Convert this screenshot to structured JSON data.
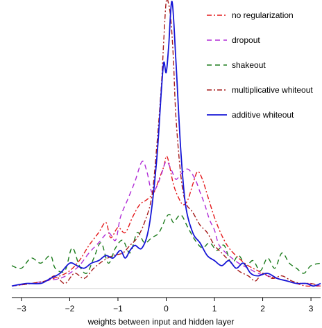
{
  "chart_data": {
    "type": "line",
    "title": "",
    "xlabel": "weights between input and hidden layer",
    "ylabel": "",
    "xlim": [
      -3.2,
      3.2
    ],
    "ylim": [
      0,
      1.13
    ],
    "xticks": [
      -3,
      -2,
      -1,
      0,
      1,
      2,
      3
    ],
    "xtick_labels": [
      "−3",
      "−2",
      "−1",
      "0",
      "1",
      "2",
      "3"
    ],
    "grid": false,
    "legend_position": "top-right",
    "series": [
      {
        "name": "no regularization",
        "color": "#e41a1c",
        "dash": "dashdot",
        "x": [
          -3.2,
          -2.8,
          -2.5,
          -2.2,
          -2.0,
          -1.8,
          -1.6,
          -1.4,
          -1.25,
          -1.15,
          -1.0,
          -0.85,
          -0.7,
          -0.55,
          -0.4,
          -0.25,
          -0.15,
          -0.05,
          0.0,
          0.05,
          0.15,
          0.25,
          0.35,
          0.45,
          0.55,
          0.65,
          0.75,
          0.85,
          1.0,
          1.15,
          1.3,
          1.5,
          1.7,
          1.9,
          2.1,
          2.3,
          2.5,
          2.7,
          2.9,
          3.2
        ],
        "y": [
          0.01,
          0.02,
          0.03,
          0.05,
          0.07,
          0.11,
          0.17,
          0.22,
          0.26,
          0.2,
          0.24,
          0.22,
          0.28,
          0.33,
          0.35,
          0.38,
          0.43,
          0.48,
          0.52,
          0.5,
          0.41,
          0.36,
          0.33,
          0.35,
          0.41,
          0.46,
          0.43,
          0.37,
          0.28,
          0.21,
          0.16,
          0.12,
          0.09,
          0.07,
          0.05,
          0.04,
          0.03,
          0.02,
          0.01,
          0.01
        ]
      },
      {
        "name": "dropout",
        "color": "#b02bd6",
        "dash": "dashed",
        "x": [
          -3.2,
          -2.8,
          -2.5,
          -2.2,
          -2.0,
          -1.8,
          -1.6,
          -1.4,
          -1.2,
          -1.05,
          -0.95,
          -0.8,
          -0.65,
          -0.5,
          -0.4,
          -0.3,
          -0.2,
          -0.1,
          0.0,
          0.1,
          0.2,
          0.3,
          0.45,
          0.6,
          0.7,
          0.8,
          0.9,
          1.0,
          1.1,
          1.3,
          1.5,
          1.7,
          1.9,
          2.1,
          2.3,
          2.5,
          2.7,
          2.9,
          3.2
        ],
        "y": [
          0.01,
          0.02,
          0.03,
          0.04,
          0.06,
          0.09,
          0.14,
          0.18,
          0.22,
          0.19,
          0.28,
          0.35,
          0.42,
          0.5,
          0.46,
          0.38,
          0.4,
          0.45,
          0.5,
          0.47,
          0.43,
          0.45,
          0.47,
          0.43,
          0.38,
          0.33,
          0.27,
          0.23,
          0.17,
          0.13,
          0.1,
          0.08,
          0.06,
          0.05,
          0.04,
          0.03,
          0.02,
          0.02,
          0.01
        ]
      },
      {
        "name": "shakeout",
        "color": "#1a7a1a",
        "dash": "dashed",
        "x": [
          -3.2,
          -3.0,
          -2.8,
          -2.6,
          -2.4,
          -2.3,
          -2.1,
          -1.95,
          -1.8,
          -1.65,
          -1.5,
          -1.35,
          -1.2,
          -1.05,
          -0.9,
          -0.75,
          -0.6,
          -0.45,
          -0.3,
          -0.15,
          0.0,
          0.08,
          0.15,
          0.3,
          0.45,
          0.6,
          0.75,
          0.9,
          1.05,
          1.2,
          1.35,
          1.5,
          1.65,
          1.8,
          1.95,
          2.1,
          2.25,
          2.4,
          2.55,
          2.7,
          2.85,
          3.0,
          3.2
        ],
        "y": [
          0.09,
          0.08,
          0.12,
          0.1,
          0.13,
          0.08,
          0.07,
          0.16,
          0.09,
          0.06,
          0.12,
          0.18,
          0.1,
          0.16,
          0.19,
          0.14,
          0.22,
          0.18,
          0.2,
          0.22,
          0.28,
          0.29,
          0.26,
          0.29,
          0.24,
          0.19,
          0.16,
          0.18,
          0.15,
          0.17,
          0.1,
          0.13,
          0.09,
          0.11,
          0.07,
          0.12,
          0.08,
          0.14,
          0.1,
          0.08,
          0.06,
          0.09,
          0.1
        ]
      },
      {
        "name": "multiplicative whiteout",
        "color": "#a61c1c",
        "dash": "dashdot",
        "x": [
          -3.2,
          -2.8,
          -2.5,
          -2.3,
          -2.1,
          -1.9,
          -1.7,
          -1.5,
          -1.3,
          -1.1,
          -0.9,
          -0.75,
          -0.6,
          -0.45,
          -0.3,
          -0.2,
          -0.1,
          -0.05,
          0.0,
          0.05,
          0.1,
          0.15,
          0.2,
          0.3,
          0.4,
          0.55,
          0.7,
          0.85,
          1.0,
          1.15,
          1.3,
          1.5,
          1.7,
          1.85,
          2.0,
          2.2,
          2.4,
          2.6,
          2.8,
          3.0,
          3.2
        ],
        "y": [
          0.01,
          0.02,
          0.03,
          0.05,
          0.02,
          0.06,
          0.04,
          0.08,
          0.11,
          0.13,
          0.14,
          0.17,
          0.2,
          0.26,
          0.36,
          0.55,
          0.8,
          0.98,
          1.13,
          1.12,
          1.05,
          0.9,
          0.68,
          0.45,
          0.34,
          0.3,
          0.25,
          0.22,
          0.17,
          0.14,
          0.11,
          0.07,
          0.05,
          0.03,
          0.06,
          0.04,
          0.05,
          0.03,
          0.02,
          0.02,
          0.01
        ]
      },
      {
        "name": "additive whiteout",
        "color": "#1515d6",
        "dash": "solid",
        "x": [
          -3.2,
          -2.9,
          -2.6,
          -2.4,
          -2.2,
          -2.0,
          -1.85,
          -1.7,
          -1.55,
          -1.4,
          -1.25,
          -1.1,
          -0.95,
          -0.85,
          -0.75,
          -0.65,
          -0.5,
          -0.35,
          -0.2,
          -0.1,
          -0.05,
          0.0,
          0.05,
          0.12,
          0.2,
          0.3,
          0.4,
          0.55,
          0.7,
          0.85,
          1.0,
          1.15,
          1.3,
          1.45,
          1.6,
          1.75,
          1.9,
          2.1,
          2.3,
          2.5,
          2.7,
          2.9,
          3.05,
          3.2
        ],
        "y": [
          0.01,
          0.02,
          0.02,
          0.04,
          0.06,
          0.1,
          0.09,
          0.08,
          0.1,
          0.11,
          0.13,
          0.12,
          0.15,
          0.12,
          0.15,
          0.17,
          0.16,
          0.25,
          0.5,
          0.78,
          0.89,
          0.85,
          0.95,
          1.13,
          0.9,
          0.55,
          0.33,
          0.22,
          0.18,
          0.13,
          0.11,
          0.09,
          0.11,
          0.08,
          0.1,
          0.06,
          0.05,
          0.06,
          0.04,
          0.03,
          0.02,
          0.02,
          0.01,
          0.02
        ]
      }
    ]
  }
}
